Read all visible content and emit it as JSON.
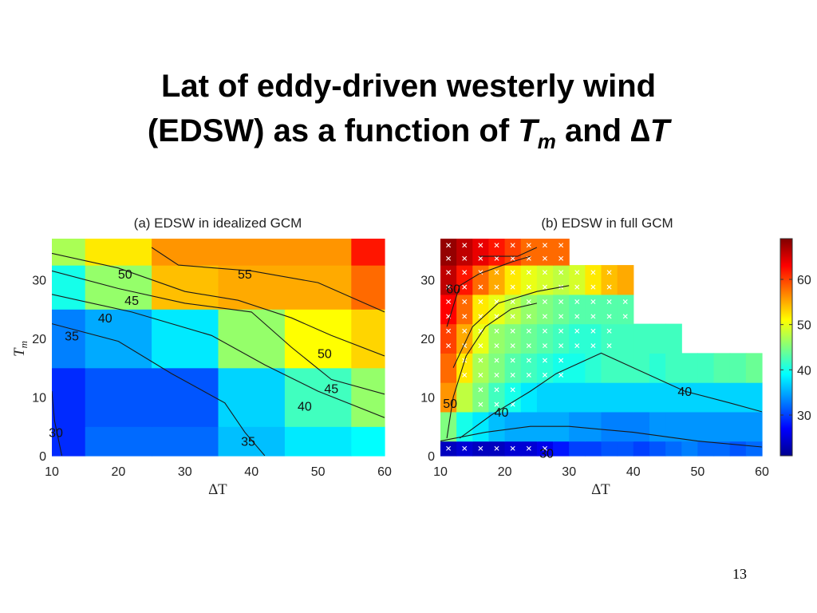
{
  "title": {
    "line1": "Lat of eddy-driven westerly wind",
    "line2_prefix": "(EDSW) as a function of ",
    "var_T": "T",
    "var_sub": "m",
    "and_text": " and ",
    "delta": "∆",
    "var_T2": "T"
  },
  "page_number": "13",
  "chart_data": [
    {
      "type": "heatmap",
      "title": "(a) EDSW in idealized GCM",
      "xlabel": "∆T",
      "ylabel": "T_m",
      "xlim": [
        10,
        60
      ],
      "ylim": [
        0,
        37
      ],
      "xticks": [
        10,
        20,
        30,
        40,
        50,
        60
      ],
      "yticks": [
        0,
        10,
        20,
        30
      ],
      "x_edges": [
        10,
        15,
        25,
        35,
        45,
        55,
        60
      ],
      "y_edges": [
        0,
        5,
        15,
        25,
        32.5,
        37
      ],
      "values": [
        [
          29,
          32,
          32,
          36,
          38,
          39
        ],
        [
          29,
          31,
          31,
          37,
          42,
          46
        ],
        [
          33,
          35,
          38,
          46,
          51,
          53
        ],
        [
          40,
          46,
          54,
          55,
          55,
          58
        ],
        [
          47,
          52,
          56,
          56,
          56,
          62
        ]
      ],
      "contours": [
        {
          "level": "30",
          "points": [
            [
              10,
              11
            ],
            [
              10.4,
              6
            ],
            [
              11.5,
              0
            ]
          ]
        },
        {
          "level": "35",
          "points": [
            [
              10,
              22.5
            ],
            [
              20,
              19.5
            ],
            [
              28,
              14
            ],
            [
              36,
              9
            ],
            [
              39,
              4
            ],
            [
              42,
              0
            ]
          ]
        },
        {
          "level": "40",
          "points": [
            [
              10,
              27.5
            ],
            [
              22,
              24.5
            ],
            [
              34,
              20.5
            ],
            [
              42,
              15.5
            ],
            [
              50,
              11
            ],
            [
              60,
              6.5
            ]
          ]
        },
        {
          "level": "45",
          "points": [
            [
              10,
              31.5
            ],
            [
              20,
              28.5
            ],
            [
              30,
              26
            ],
            [
              40,
              24.5
            ],
            [
              46,
              18.5
            ],
            [
              52,
              13
            ],
            [
              60,
              10.5
            ]
          ]
        },
        {
          "level": "50",
          "points": [
            [
              10,
              34.5
            ],
            [
              20,
              32
            ],
            [
              30,
              28
            ],
            [
              38,
              26.5
            ],
            [
              46,
              23.5
            ],
            [
              52,
              20.5
            ],
            [
              60,
              17
            ]
          ]
        },
        {
          "level": "55",
          "points": [
            [
              25,
              35.5
            ],
            [
              29,
              32.5
            ],
            [
              40,
              31.5
            ],
            [
              50,
              29.5
            ],
            [
              60,
              24.5
            ]
          ]
        }
      ],
      "contour_labels": [
        {
          "text": "30",
          "x": 10.6,
          "y": 4
        },
        {
          "text": "35",
          "x": 13,
          "y": 20.5
        },
        {
          "text": "40",
          "x": 18,
          "y": 23.5
        },
        {
          "text": "45",
          "x": 22,
          "y": 26.5
        },
        {
          "text": "50",
          "x": 21,
          "y": 31
        },
        {
          "text": "55",
          "x": 39,
          "y": 31
        },
        {
          "text": "50",
          "x": 51,
          "y": 17.5
        },
        {
          "text": "45",
          "x": 52,
          "y": 11.5
        },
        {
          "text": "40",
          "x": 48,
          "y": 8.5
        },
        {
          "text": "35",
          "x": 39.5,
          "y": 2.5
        }
      ]
    },
    {
      "type": "heatmap",
      "title": "(b) EDSW in full GCM",
      "xlabel": "∆T",
      "xlim": [
        10,
        60
      ],
      "ylim": [
        0,
        37
      ],
      "xticks": [
        10,
        20,
        30,
        40,
        50,
        60
      ],
      "yticks": [
        0,
        10,
        20,
        30
      ],
      "x_start": 10,
      "col_width": 2.5,
      "y_edges": [
        0,
        2.5,
        7.5,
        12.5,
        17.5,
        22.5,
        27.5,
        32.5,
        37
      ],
      "rows": [
        [
          24,
          25,
          24,
          24,
          25,
          25,
          26,
          28,
          30,
          30,
          31,
          31,
          30,
          31,
          32,
          33,
          32,
          32,
          31,
          32
        ],
        [
          45,
          40,
          38,
          36,
          35,
          35,
          35,
          35,
          34,
          34,
          33,
          33,
          33,
          34,
          34,
          34,
          34,
          34,
          34,
          34
        ],
        [
          56,
          48,
          45,
          42,
          40,
          38,
          37,
          37,
          37,
          37,
          37,
          37,
          37,
          37,
          37,
          37,
          37,
          37,
          37,
          37
        ],
        [
          58,
          52,
          47,
          45,
          43,
          42,
          41,
          40,
          40,
          41,
          42,
          42,
          42,
          41,
          42,
          42,
          42,
          43,
          43,
          44
        ],
        [
          60,
          55,
          50,
          46,
          45,
          44,
          43,
          42,
          41,
          41,
          42,
          42,
          42,
          42,
          42
        ],
        [
          63,
          58,
          52,
          50,
          48,
          46,
          45,
          44,
          43,
          43,
          43,
          43
        ],
        [
          66,
          62,
          58,
          55,
          52,
          50,
          49,
          48,
          49,
          52,
          54,
          55
        ],
        [
          68,
          66,
          64,
          62,
          60,
          58,
          58,
          58
        ]
      ],
      "cross_rows": [
        [
          true,
          true,
          true,
          true,
          true,
          true,
          true,
          false,
          false,
          false,
          false,
          false,
          false,
          false,
          false,
          false,
          false,
          false,
          false,
          false
        ],
        [
          false,
          false,
          false,
          false,
          false,
          false,
          false,
          false,
          false,
          false,
          false,
          false,
          false,
          false,
          false,
          false,
          false,
          false,
          false,
          false
        ],
        [
          false,
          false,
          true,
          true,
          true,
          false,
          false,
          false,
          false,
          false,
          false,
          false,
          false,
          false,
          false,
          false,
          false,
          false,
          false,
          false
        ],
        [
          false,
          true,
          true,
          true,
          true,
          true,
          true,
          true,
          false,
          false,
          false,
          false,
          false,
          false,
          false,
          false,
          false,
          false,
          false,
          false
        ],
        [
          true,
          true,
          true,
          true,
          true,
          true,
          true,
          true,
          true,
          true,
          true,
          false,
          false,
          false,
          false
        ],
        [
          true,
          true,
          true,
          true,
          true,
          true,
          true,
          true,
          true,
          true,
          true,
          true
        ],
        [
          true,
          true,
          true,
          true,
          true,
          true,
          true,
          true,
          true,
          true,
          true,
          false
        ],
        [
          true,
          true,
          true,
          true,
          true,
          true,
          true,
          true
        ]
      ],
      "contours": [
        {
          "level": "30",
          "points": [
            [
              10,
              2.5
            ],
            [
              17,
              4
            ],
            [
              24,
              5
            ],
            [
              30,
              5
            ],
            [
              40,
              4
            ],
            [
              50,
              2.5
            ],
            [
              60,
              1.5
            ]
          ]
        },
        {
          "level": "40",
          "points": [
            [
              13,
              3
            ],
            [
              18,
              7
            ],
            [
              24,
              11
            ],
            [
              28,
              14
            ],
            [
              35,
              17.5
            ],
            [
              40,
              15
            ],
            [
              48,
              11
            ],
            [
              55,
              9
            ],
            [
              60,
              7.5
            ]
          ]
        },
        {
          "level": "50",
          "points": [
            [
              11,
              3
            ],
            [
              12,
              10
            ],
            [
              14,
              17
            ],
            [
              17,
              22
            ],
            [
              21,
              25
            ],
            [
              25,
              26
            ]
          ]
        },
        {
          "level": "50",
          "points": [
            [
              12,
              15
            ],
            [
              15,
              22
            ],
            [
              19,
              26
            ],
            [
              25,
              28
            ],
            [
              30,
              29
            ]
          ]
        },
        {
          "level": "60",
          "points": [
            [
              11,
              22
            ],
            [
              13,
              29
            ],
            [
              16,
              31
            ],
            [
              21,
              33
            ],
            [
              24,
              34
            ]
          ]
        },
        {
          "level": "60",
          "points": [
            [
              16,
              34
            ],
            [
              22,
              34
            ],
            [
              25,
              35.5
            ]
          ]
        }
      ],
      "contour_labels": [
        {
          "text": "30",
          "x": 26.5,
          "y": 0.5
        },
        {
          "text": "40",
          "x": 19.5,
          "y": 7.5
        },
        {
          "text": "40",
          "x": 48,
          "y": 11
        },
        {
          "text": "50",
          "x": 11.5,
          "y": 9
        },
        {
          "text": "60",
          "x": 12,
          "y": 28.5
        }
      ]
    }
  ],
  "colorbar": {
    "ticks": [
      "30",
      "40",
      "50",
      "60"
    ],
    "tick_values": [
      30,
      40,
      50,
      60
    ],
    "vmin": 21,
    "vmax": 69
  }
}
